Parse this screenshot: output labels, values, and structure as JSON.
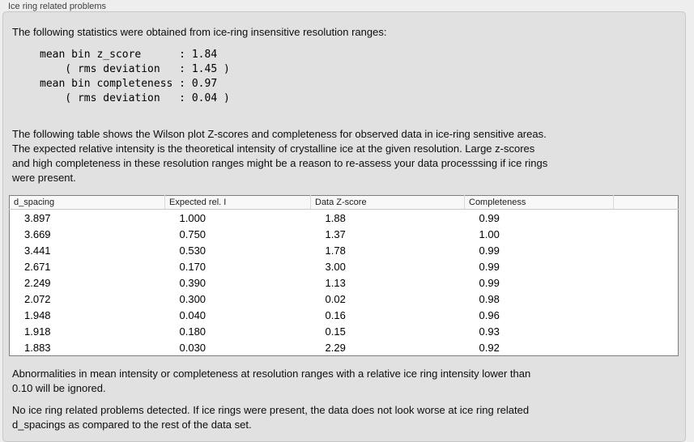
{
  "panel": {
    "title": "Ice ring related problems",
    "intro": "The following statistics were obtained from ice-ring insensitive resolution ranges:",
    "stats_block": "mean bin z_score      : 1.84\n    ( rms deviation   : 1.45 )\nmean bin completeness : 0.97\n    ( rms deviation   : 0.04 )",
    "table_description": "The following table shows the Wilson plot Z-scores and completeness for observed data in ice-ring sensitive areas.\nThe expected relative intensity is the theoretical intensity of crystalline ice at the given resolution. Large z-scores\nand high completeness in these resolution ranges might be a reason to re-assess your data processsing if ice rings\nwere present.",
    "note_ignored": "Abnormalities in mean intensity or completeness at resolution ranges with a relative ice ring intensity lower than\n0.10 will be ignored.",
    "conclusion": "No ice ring related problems detected. If ice rings were present, the data does not look worse at ice ring related\nd_spacings as compared to the rest of the data set."
  },
  "table": {
    "columns": [
      "d_spacing",
      "Expected rel. I",
      "Data Z-score",
      "Completeness"
    ],
    "rows": [
      [
        "3.897",
        "1.000",
        "1.88",
        "0.99"
      ],
      [
        "3.669",
        "0.750",
        "1.37",
        "1.00"
      ],
      [
        "3.441",
        "0.530",
        "1.78",
        "0.99"
      ],
      [
        "2.671",
        "0.170",
        "3.00",
        "0.99"
      ],
      [
        "2.249",
        "0.390",
        "1.13",
        "0.99"
      ],
      [
        "2.072",
        "0.300",
        "0.02",
        "0.98"
      ],
      [
        "1.948",
        "0.040",
        "0.16",
        "0.96"
      ],
      [
        "1.918",
        "0.180",
        "0.15",
        "0.93"
      ],
      [
        "1.883",
        "0.030",
        "2.29",
        "0.92"
      ]
    ]
  },
  "colors": {
    "page_bg": "#eeeeee",
    "box_bg": "#e1e1e1",
    "box_border": "#c7c7c7",
    "table_border": "#7e7e7e",
    "header_bg": "#f8f8f8"
  }
}
